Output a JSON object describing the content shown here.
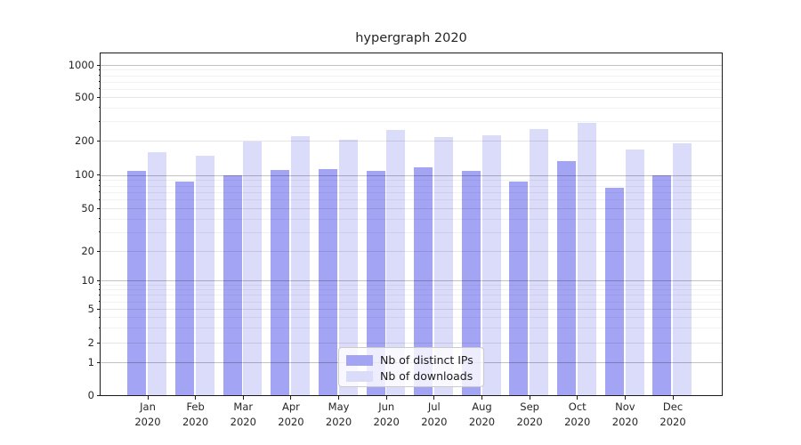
{
  "chart_data": {
    "type": "bar",
    "title": "hypergraph 2020",
    "yscale": "symlog (logarithmic above 1, linear 0-1)",
    "ylim": [
      0,
      1270
    ],
    "grid": "horizontal major+minor, drawn over bars",
    "legend_position": "lower center inside plot",
    "categories": [
      "Jan 2020",
      "Feb 2020",
      "Mar 2020",
      "Apr 2020",
      "May 2020",
      "Jun 2020",
      "Jul 2020",
      "Aug 2020",
      "Sep 2020",
      "Oct 2020",
      "Nov 2020",
      "Dec 2020"
    ],
    "yticks": [
      0,
      1,
      2,
      5,
      10,
      20,
      50,
      100,
      200,
      500,
      1000
    ],
    "series": [
      {
        "name": "Nb of distinct IPs",
        "color": "#a4a4f4",
        "values": [
          108,
          87,
          100,
          110,
          112,
          108,
          116,
          108,
          87,
          132,
          77,
          99
        ]
      },
      {
        "name": "Nb of downloads",
        "color": "#dbdbfa",
        "values": [
          158,
          146,
          195,
          218,
          205,
          252,
          215,
          224,
          257,
          292,
          168,
          188
        ]
      }
    ]
  }
}
